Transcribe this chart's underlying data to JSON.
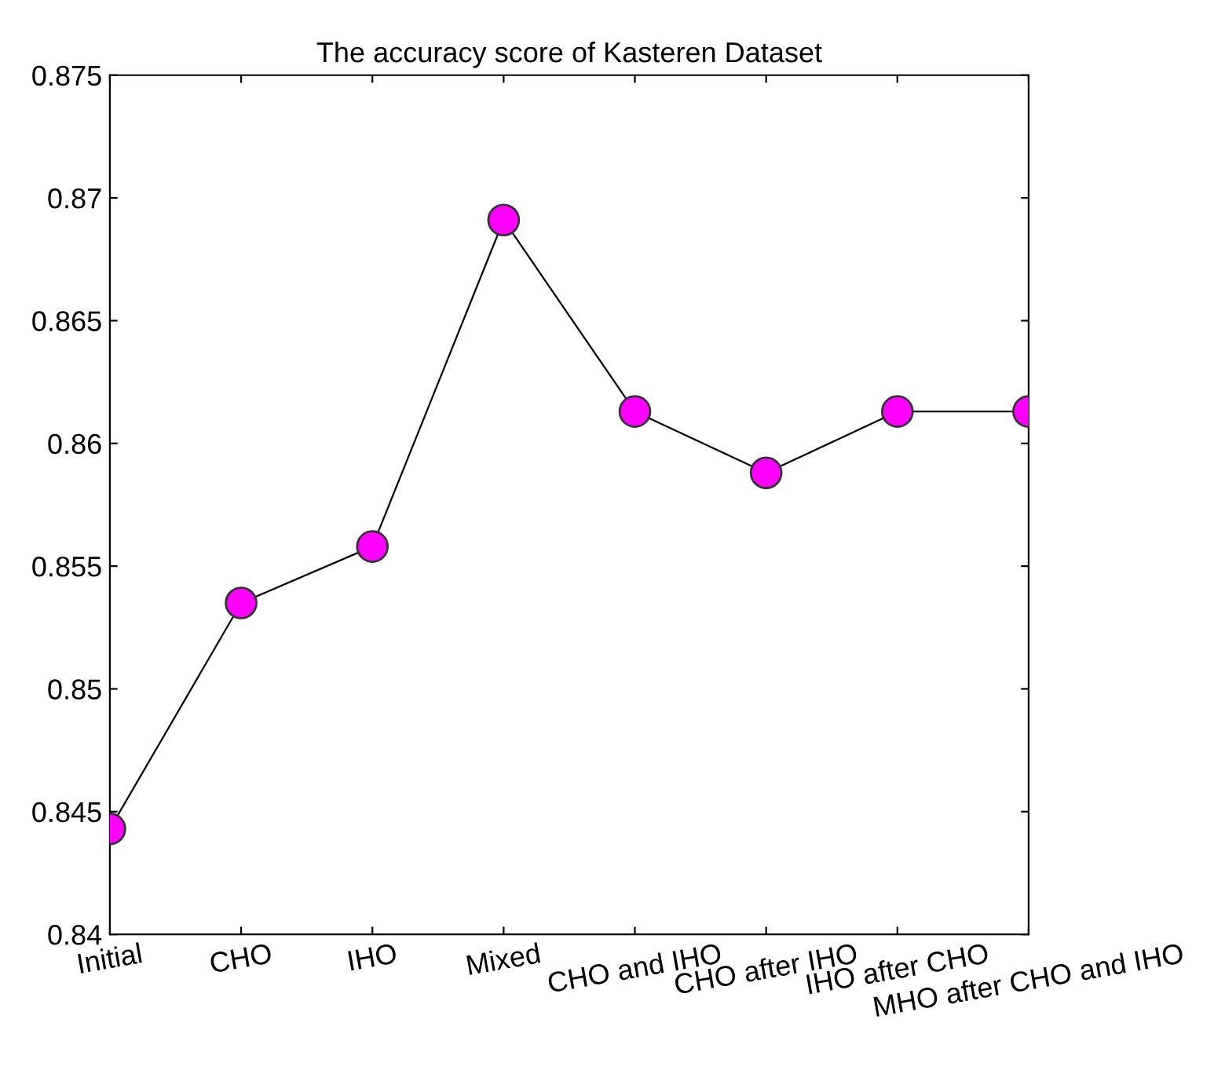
{
  "chart_data": {
    "type": "line",
    "title": "The accuracy score of Kasteren Dataset",
    "categories": [
      "Initial",
      "CHO",
      "IHO",
      "Mixed",
      "CHO and IHO",
      "CHO after IHO",
      "IHO after CHO",
      "MHO after CHO and IHO"
    ],
    "series": [
      {
        "color": "#ff00ff",
        "values": [
          0.8443,
          0.8535,
          0.8558,
          0.8691,
          0.8613,
          0.8588,
          0.8613,
          0.8613
        ]
      }
    ],
    "ylim": [
      0.84,
      0.875
    ],
    "yticks": [
      0.84,
      0.845,
      0.85,
      0.855,
      0.86,
      0.865,
      0.87,
      0.875
    ],
    "grid": false,
    "marker": "circle",
    "line_style": "solid"
  }
}
